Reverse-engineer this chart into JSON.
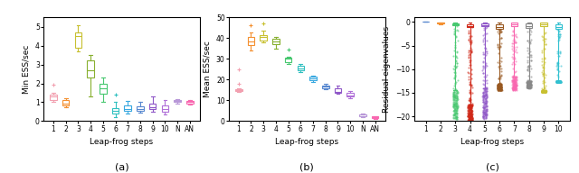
{
  "xlabels_abc": [
    "1",
    "2",
    "3",
    "4",
    "5",
    "6",
    "7",
    "8",
    "9",
    "10",
    "N",
    "AN"
  ],
  "xlabels_c": [
    "1",
    "2",
    "3",
    "4",
    "5",
    "6",
    "7",
    "8",
    "9",
    "10"
  ],
  "colors_a": [
    "#f2a0b0",
    "#f49030",
    "#c8c030",
    "#88b030",
    "#48c870",
    "#30c0c0",
    "#38a8e0",
    "#5888d0",
    "#9058c8",
    "#b070d8",
    "#b898d8",
    "#f868b0"
  ],
  "colors_b": [
    "#f2a0b0",
    "#f49030",
    "#c8c030",
    "#88b030",
    "#48c870",
    "#30c0c0",
    "#38a8e0",
    "#5888d0",
    "#9058c8",
    "#b070d8",
    "#b898d8",
    "#f868b0"
  ],
  "colors_c": [
    "#5888d0",
    "#f49030",
    "#48c870",
    "#d02818",
    "#9058c8",
    "#985820",
    "#f868b0",
    "#888888",
    "#c8c030",
    "#30c0d0"
  ],
  "ylabel_a": "Min ESS/sec",
  "ylabel_b": "Mean ESS/sec",
  "ylabel_c": "Residual eigenvalues",
  "xlabel": "Leap-frog steps",
  "ylim_a": [
    0,
    5.5
  ],
  "ylim_b": [
    0,
    50
  ],
  "ylim_c": [
    -21,
    1
  ],
  "yticks_a": [
    0,
    1,
    2,
    3,
    4,
    5
  ],
  "yticks_b": [
    0,
    10,
    20,
    30,
    40,
    50
  ],
  "yticks_c": [
    0,
    -5,
    -10,
    -15,
    -20
  ],
  "a_medians": [
    1.3,
    0.95,
    4.5,
    2.7,
    1.75,
    0.55,
    0.65,
    0.65,
    0.75,
    0.65,
    1.05,
    1.0
  ],
  "a_q1": [
    1.1,
    0.82,
    3.9,
    2.3,
    1.45,
    0.42,
    0.55,
    0.55,
    0.65,
    0.5,
    1.0,
    0.95
  ],
  "a_q3": [
    1.42,
    1.1,
    4.72,
    3.2,
    2.0,
    0.7,
    0.85,
    0.8,
    0.95,
    0.85,
    1.1,
    1.05
  ],
  "a_whislo": [
    1.0,
    0.72,
    3.68,
    1.3,
    1.0,
    0.2,
    0.4,
    0.45,
    0.5,
    0.35,
    0.95,
    0.9
  ],
  "a_whishi": [
    1.52,
    1.22,
    5.1,
    3.5,
    2.3,
    1.0,
    1.05,
    1.0,
    1.3,
    1.1,
    1.15,
    1.1
  ],
  "a_fliers_hi": [
    1.95,
    0.0,
    0.0,
    0.0,
    0.0,
    1.38,
    0.0,
    0.0,
    0.0,
    0.0,
    0.0,
    0.0
  ],
  "a_fliers_lo": [
    0.0,
    0.0,
    0.0,
    0.0,
    0.0,
    0.0,
    0.0,
    0.0,
    0.0,
    0.0,
    0.0,
    0.0
  ],
  "b_medians": [
    15.0,
    38.5,
    40.5,
    38.5,
    30.0,
    25.5,
    20.5,
    16.5,
    14.0,
    12.5,
    3.0,
    1.8
  ],
  "b_q1": [
    14.5,
    36.5,
    39.0,
    37.0,
    28.5,
    24.5,
    19.5,
    16.0,
    13.5,
    12.0,
    2.5,
    1.5
  ],
  "b_q3": [
    15.5,
    40.5,
    41.5,
    39.5,
    30.5,
    26.5,
    21.5,
    17.0,
    16.0,
    13.5,
    3.2,
    2.2
  ],
  "b_whislo": [
    14.0,
    34.0,
    38.0,
    35.0,
    27.5,
    23.5,
    19.0,
    15.5,
    13.0,
    11.0,
    2.0,
    1.2
  ],
  "b_whishi": [
    16.0,
    42.5,
    43.5,
    40.5,
    30.8,
    27.5,
    22.0,
    18.0,
    17.0,
    14.5,
    3.5,
    2.5
  ],
  "b_fliers_hi": [
    25.0,
    46.0,
    47.0,
    0.0,
    34.5,
    0.0,
    0.0,
    0.0,
    0.0,
    0.0,
    0.0,
    0.0
  ],
  "b_fliers_lo": [
    18.0,
    0.0,
    0.0,
    0.0,
    0.0,
    0.0,
    0.0,
    0.0,
    0.0,
    0.0,
    0.0,
    0.0
  ],
  "c_medians": [
    0.0,
    -0.15,
    -0.5,
    -0.8,
    -0.6,
    -1.0,
    -0.5,
    -0.8,
    -0.5,
    -1.0
  ],
  "c_q1": [
    0.0,
    -0.28,
    -0.7,
    -1.0,
    -0.9,
    -1.5,
    -0.9,
    -1.2,
    -0.9,
    -1.5
  ],
  "c_q3": [
    0.0,
    -0.05,
    -0.28,
    -0.45,
    -0.28,
    -0.45,
    -0.18,
    -0.38,
    -0.18,
    -0.45
  ],
  "c_whislo": [
    0.0,
    -0.5,
    -14.5,
    -17.5,
    -14.0,
    -13.0,
    -11.5,
    -12.5,
    -14.5,
    -12.5
  ],
  "c_whishi": [
    0.0,
    -0.02,
    -0.08,
    -0.15,
    -0.08,
    -0.15,
    -0.05,
    -0.15,
    -0.05,
    -0.15
  ],
  "c_fliers_lo": [
    0.0,
    0.0,
    -20.5,
    -21.5,
    -20.5,
    -14.5,
    -14.5,
    -14.0,
    -14.8,
    -12.8
  ],
  "c_ndots": [
    0,
    0,
    150,
    200,
    150,
    120,
    120,
    120,
    130,
    110
  ]
}
